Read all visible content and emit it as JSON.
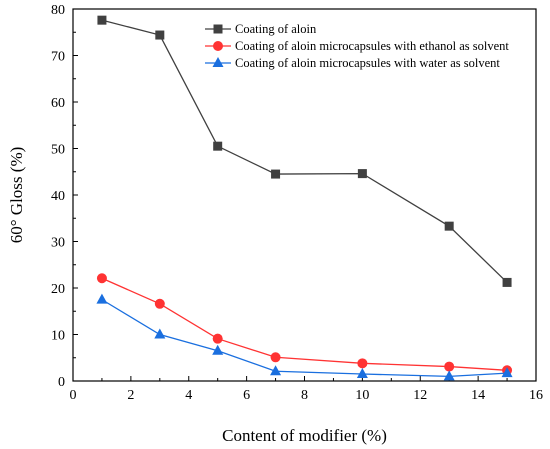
{
  "chart_data": {
    "type": "line",
    "xlabel": "Content of modifier (%)",
    "ylabel": "60° Gloss (%)",
    "xlim": [
      0,
      16
    ],
    "ylim": [
      0,
      80
    ],
    "x_ticks": [
      0,
      2,
      4,
      6,
      8,
      10,
      12,
      14,
      16
    ],
    "y_ticks": [
      0,
      10,
      20,
      30,
      40,
      50,
      60,
      70,
      80
    ],
    "grid": false,
    "legend_position": "top-right",
    "x": [
      1,
      3,
      5,
      7,
      10,
      13,
      15
    ],
    "series": [
      {
        "name": "Coating of aloin",
        "values": [
          77.6,
          74.4,
          50.5,
          44.5,
          44.6,
          33.3,
          21.2
        ],
        "color": "#404040",
        "marker": "square"
      },
      {
        "name": "Coating of aloin microcapsules with ethanol as solvent",
        "values": [
          22.1,
          16.6,
          9.1,
          5.1,
          3.8,
          3.1,
          2.3
        ],
        "color": "#ff3333",
        "marker": "circle"
      },
      {
        "name": "Coating of aloin microcapsules with water as solvent",
        "values": [
          17.5,
          10.0,
          6.5,
          2.1,
          1.5,
          1.0,
          1.7
        ],
        "color": "#1a6fdf",
        "marker": "triangle"
      }
    ]
  }
}
